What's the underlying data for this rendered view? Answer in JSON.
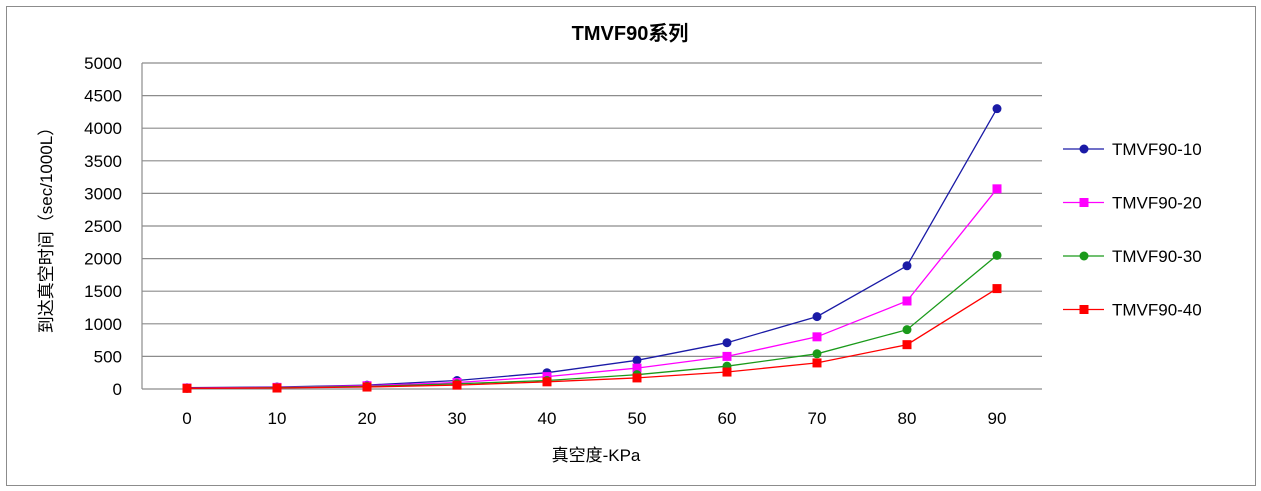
{
  "chart_data": {
    "type": "line",
    "title": "TMVF90系列",
    "xlabel": "真空度-KPa",
    "ylabel": "到达真空时间（sec/1000L）",
    "categories": [
      "0",
      "10",
      "20",
      "30",
      "40",
      "50",
      "60",
      "70",
      "80",
      "90"
    ],
    "ylim": [
      0,
      5000
    ],
    "yticks": [
      0,
      500,
      1000,
      1500,
      2000,
      2500,
      3000,
      3500,
      4000,
      4500,
      5000
    ],
    "grid": "horizontal",
    "legend_position": "right",
    "series": [
      {
        "name": "TMVF90-10",
        "color": "#1a1aa6",
        "marker": "circle",
        "values": [
          20,
          30,
          60,
          130,
          250,
          440,
          710,
          1110,
          1890,
          4300
        ]
      },
      {
        "name": "TMVF90-20",
        "color": "#ff00ff",
        "marker": "square",
        "values": [
          15,
          25,
          50,
          100,
          190,
          320,
          500,
          800,
          1350,
          3070
        ]
      },
      {
        "name": "TMVF90-30",
        "color": "#1a9a1a",
        "marker": "circle",
        "values": [
          10,
          20,
          40,
          80,
          130,
          220,
          350,
          540,
          910,
          2050
        ]
      },
      {
        "name": "TMVF90-40",
        "color": "#ff0000",
        "marker": "square",
        "values": [
          10,
          15,
          30,
          60,
          110,
          170,
          260,
          400,
          680,
          1540
        ]
      }
    ]
  }
}
